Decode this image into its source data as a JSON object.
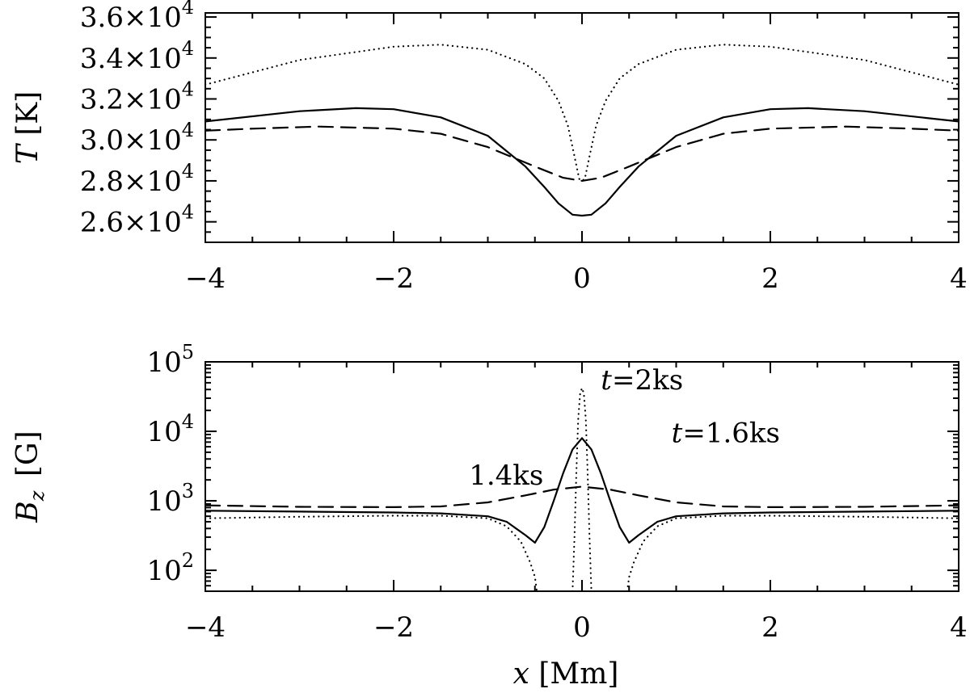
{
  "chart_data": [
    {
      "type": "line",
      "ylabel": {
        "symbol": "T",
        "unit": "[K]"
      },
      "xlim": [
        -4,
        4
      ],
      "ylim": [
        25000,
        36200
      ],
      "yscale": "linear",
      "x_ticks": [
        "−4",
        "−2",
        "0",
        "2",
        "4"
      ],
      "x_tick_values": [
        -4,
        -2,
        0,
        2,
        4
      ],
      "y_ticks": [
        {
          "value": 26000,
          "mant": "2.6",
          "exp": "4"
        },
        {
          "value": 28000,
          "mant": "2.8",
          "exp": "4"
        },
        {
          "value": 30000,
          "mant": "3.0",
          "exp": "4"
        },
        {
          "value": 32000,
          "mant": "3.2",
          "exp": "4"
        },
        {
          "value": 34000,
          "mant": "3.4",
          "exp": "4"
        },
        {
          "value": 36000,
          "mant": "3.6",
          "exp": "4"
        }
      ],
      "series": [
        {
          "style": "solid",
          "x": [
            -4,
            -3,
            -2.4,
            -2,
            -1.5,
            -1.0,
            -0.6,
            -0.4,
            -0.25,
            -0.1,
            0,
            0.1,
            0.25,
            0.4,
            0.6,
            1.0,
            1.5,
            2,
            2.4,
            3,
            4
          ],
          "y": [
            30900,
            31400,
            31550,
            31500,
            31100,
            30200,
            28700,
            27700,
            26900,
            26350,
            26300,
            26350,
            26900,
            27700,
            28700,
            30200,
            31100,
            31500,
            31550,
            31400,
            30900
          ]
        },
        {
          "style": "dashed",
          "x": [
            -4,
            -3.5,
            -2.8,
            -2,
            -1.5,
            -1,
            -0.5,
            -0.2,
            0,
            0.2,
            0.5,
            1,
            1.5,
            2,
            2.8,
            3.5,
            4
          ],
          "y": [
            30450,
            30550,
            30650,
            30550,
            30300,
            29650,
            28700,
            28150,
            28000,
            28150,
            28700,
            29650,
            30300,
            30550,
            30650,
            30550,
            30450
          ]
        },
        {
          "style": "dotted",
          "x": [
            -4,
            -3,
            -2,
            -1.5,
            -1,
            -0.6,
            -0.4,
            -0.25,
            -0.15,
            -0.08,
            -0.03,
            0,
            0.03,
            0.08,
            0.15,
            0.25,
            0.4,
            0.6,
            1,
            1.5,
            2,
            3,
            4
          ],
          "y": [
            32700,
            33900,
            34550,
            34650,
            34400,
            33700,
            33000,
            31900,
            30700,
            29200,
            28100,
            28000,
            28100,
            29200,
            30700,
            31900,
            33000,
            33700,
            34400,
            34650,
            34550,
            33900,
            32700
          ]
        }
      ]
    },
    {
      "type": "line",
      "ylabel": {
        "symbol": "B",
        "sub": "z",
        "unit": "[G]"
      },
      "xlabel": {
        "symbol": "x",
        "unit": "[Mm]"
      },
      "xlim": [
        -4,
        4
      ],
      "ylim": [
        50,
        100000
      ],
      "yscale": "log",
      "x_ticks": [
        "−4",
        "−2",
        "0",
        "2",
        "4"
      ],
      "x_tick_values": [
        -4,
        -2,
        0,
        2,
        4
      ],
      "y_ticks": [
        {
          "value": 100,
          "base": "10",
          "exp": "2"
        },
        {
          "value": 1000,
          "base": "10",
          "exp": "3"
        },
        {
          "value": 10000,
          "base": "10",
          "exp": "4"
        },
        {
          "value": 100000,
          "base": "10",
          "exp": "5"
        }
      ],
      "series": [
        {
          "style": "solid",
          "x": [
            -4,
            -3,
            -2,
            -1.5,
            -1,
            -0.8,
            -0.6,
            -0.5,
            -0.4,
            -0.3,
            -0.2,
            -0.1,
            0,
            0.1,
            0.2,
            0.3,
            0.4,
            0.5,
            0.6,
            0.8,
            1,
            1.5,
            2,
            3,
            4
          ],
          "y": [
            720,
            700,
            680,
            660,
            600,
            500,
            320,
            250,
            420,
            1000,
            2500,
            5500,
            8000,
            5500,
            2500,
            1000,
            420,
            250,
            320,
            500,
            600,
            660,
            680,
            700,
            720
          ]
        },
        {
          "style": "dashed",
          "x": [
            -4,
            -3,
            -2,
            -1.5,
            -1,
            -0.6,
            -0.3,
            0,
            0.3,
            0.6,
            1,
            1.5,
            2,
            3,
            4
          ],
          "y": [
            860,
            820,
            810,
            830,
            950,
            1200,
            1450,
            1600,
            1450,
            1200,
            950,
            830,
            810,
            820,
            860
          ]
        },
        {
          "style": "dotted",
          "x": [
            -4,
            -3,
            -2,
            -1.5,
            -1,
            -0.8,
            -0.65,
            -0.55,
            -0.5,
            -0.48
          ],
          "y": [
            560,
            590,
            610,
            610,
            560,
            430,
            260,
            130,
            80,
            50
          ]
        },
        {
          "style": "dotted",
          "x": [
            -0.1,
            -0.08,
            -0.06,
            -0.04,
            -0.02,
            0,
            0.02,
            0.04,
            0.06,
            0.08,
            0.1
          ],
          "y": [
            50,
            300,
            2500,
            15000,
            35000,
            42000,
            35000,
            15000,
            2500,
            300,
            50
          ]
        },
        {
          "style": "dotted",
          "x": [
            0.48,
            0.5,
            0.55,
            0.65,
            0.8,
            1,
            1.5,
            2,
            3,
            4
          ],
          "y": [
            50,
            80,
            130,
            260,
            430,
            560,
            610,
            610,
            590,
            560
          ]
        }
      ],
      "annotations": [
        {
          "italic": "t",
          "text": "=2ks",
          "x": 0.2,
          "y": 40000
        },
        {
          "italic": "t",
          "text": "=1.6ks",
          "x": 0.95,
          "y": 7000
        },
        {
          "italic": "",
          "text": "1.4ks",
          "x": -1.2,
          "y": 1700
        }
      ]
    }
  ]
}
